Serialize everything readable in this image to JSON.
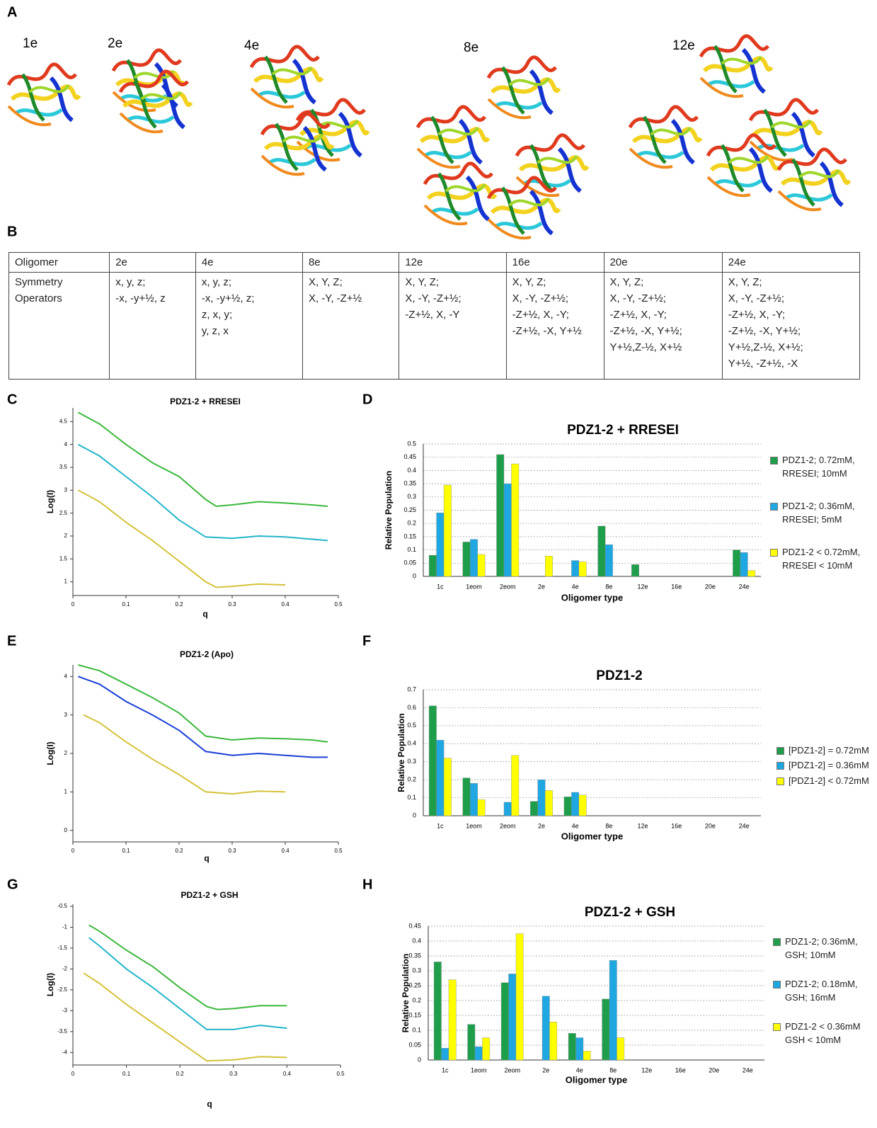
{
  "panel_labels": [
    "A",
    "B",
    "C",
    "D",
    "E",
    "F",
    "G",
    "H"
  ],
  "structures": [
    "1e",
    "2e",
    "4e",
    "8e",
    "12e"
  ],
  "table": {
    "header": [
      "Oligomer",
      "2e",
      "4e",
      "8e",
      "12e",
      "16e",
      "20e",
      "24e"
    ],
    "rows": [
      [
        [
          "Symmetry",
          "Operators"
        ],
        [
          "x, y, z;",
          "-x, -y+½, z"
        ],
        [
          "x, y, z;",
          "-x, -y+½, z;",
          "z, x, y;",
          "y, z, x"
        ],
        [
          "X, Y, Z;",
          "X, -Y, -Z+½"
        ],
        [
          "X, Y, Z;",
          "X, -Y, -Z+½;",
          "-Z+½, X, -Y"
        ],
        [
          "X, Y, Z;",
          "X, -Y, -Z+½;",
          "-Z+½, X, -Y;",
          "-Z+½, -X, Y+½"
        ],
        [
          "X, Y, Z;",
          "X, -Y, -Z+½;",
          "-Z+½, X, -Y;",
          "-Z+½, -X, Y+½;",
          "Y+½,Z-½, X+½"
        ],
        [
          "X, Y, Z;",
          "X, -Y, -Z+½;",
          "-Z+½, X, -Y;",
          "-Z+½, -X, Y+½;",
          "Y+½,Z-½, X+½;",
          "Y+½, -Z+½, -X"
        ]
      ]
    ]
  },
  "chart_data": [
    {
      "type": "line",
      "title": "PDZ1-2 + RRESEI",
      "x_label": "q",
      "y_label": "Log(I)",
      "xlim": [
        0,
        0.5
      ],
      "ylim": [
        0.7,
        4.8
      ],
      "xticks": [
        0,
        0.1,
        0.2,
        0.3,
        0.4,
        0.5
      ],
      "yticks": [
        1,
        1.5,
        2,
        2.5,
        3,
        3.5,
        4,
        4.5
      ],
      "series": [
        {
          "color": "#3cb83c",
          "x": [
            0.01,
            0.05,
            0.1,
            0.15,
            0.2,
            0.25,
            0.27,
            0.3,
            0.35,
            0.4,
            0.45,
            0.48
          ],
          "values": [
            4.7,
            4.45,
            4.0,
            3.6,
            3.3,
            2.8,
            2.65,
            2.68,
            2.75,
            2.72,
            2.68,
            2.65
          ]
        },
        {
          "color": "#22b5c8",
          "x": [
            0.01,
            0.05,
            0.1,
            0.15,
            0.2,
            0.25,
            0.3,
            0.35,
            0.4,
            0.45,
            0.48
          ],
          "values": [
            4.0,
            3.75,
            3.3,
            2.85,
            2.35,
            1.98,
            1.95,
            2.0,
            1.98,
            1.93,
            1.9
          ]
        },
        {
          "color": "#d4c23a",
          "x": [
            0.01,
            0.05,
            0.1,
            0.15,
            0.2,
            0.25,
            0.27,
            0.3,
            0.35,
            0.4
          ],
          "values": [
            3.0,
            2.75,
            2.3,
            1.9,
            1.45,
            1.0,
            0.88,
            0.9,
            0.95,
            0.93
          ]
        }
      ]
    },
    {
      "type": "bar",
      "title": "PDZ1-2 + RRESEI",
      "x_label": "Oligomer type",
      "y_label": "Relative Population",
      "grid": true,
      "ylim": [
        0,
        0.5
      ],
      "yticks": [
        0,
        0.05,
        0.1,
        0.15,
        0.2,
        0.25,
        0.3,
        0.35,
        0.4,
        0.45,
        0.5
      ],
      "categories": [
        "1c",
        "1eom",
        "2eom",
        "2e",
        "4e",
        "8e",
        "12e",
        "16e",
        "20e",
        "24e"
      ],
      "series": [
        {
          "name": "PDZ1-2; 0.72mM, RRESEI; 10mM",
          "color": "#1e9e4a",
          "values": [
            0.08,
            0.13,
            0.46,
            0,
            0,
            0.19,
            0.045,
            0,
            0,
            0.1
          ]
        },
        {
          "name": "PDZ1-2; 0.36mM, RRESEI; 5mM",
          "color": "#1ea7e1",
          "values": [
            0.24,
            0.14,
            0.35,
            0,
            0.06,
            0.12,
            0,
            0,
            0,
            0.09
          ]
        },
        {
          "name": "PDZ1-2 < 0.72mM, RRESEI < 10mM",
          "color": "#ffff00",
          "values": [
            0.345,
            0.083,
            0.425,
            0.077,
            0.055,
            0,
            0,
            0,
            0,
            0.022
          ]
        }
      ]
    },
    {
      "type": "line",
      "title": "PDZ1-2 (Apo)",
      "x_label": "q",
      "y_label": "Log(I)",
      "xlim": [
        0,
        0.5
      ],
      "ylim": [
        -0.3,
        4.3
      ],
      "xticks": [
        0,
        0.1,
        0.2,
        0.3,
        0.4,
        0.5
      ],
      "yticks": [
        0,
        1,
        2,
        3,
        4
      ],
      "series": [
        {
          "color": "#3cb83c",
          "x": [
            0.01,
            0.05,
            0.1,
            0.15,
            0.2,
            0.25,
            0.3,
            0.35,
            0.4,
            0.45,
            0.48
          ],
          "values": [
            4.3,
            4.15,
            3.8,
            3.45,
            3.05,
            2.45,
            2.35,
            2.4,
            2.38,
            2.35,
            2.3
          ]
        },
        {
          "color": "#1a3fd6",
          "x": [
            0.01,
            0.05,
            0.1,
            0.15,
            0.2,
            0.25,
            0.3,
            0.35,
            0.4,
            0.45,
            0.48
          ],
          "values": [
            4.0,
            3.8,
            3.35,
            3.0,
            2.6,
            2.05,
            1.95,
            2.0,
            1.95,
            1.9,
            1.9
          ]
        },
        {
          "color": "#d4c23a",
          "x": [
            0.02,
            0.05,
            0.1,
            0.15,
            0.2,
            0.25,
            0.3,
            0.35,
            0.4
          ],
          "values": [
            3.0,
            2.8,
            2.3,
            1.85,
            1.45,
            1.0,
            0.95,
            1.02,
            1.0
          ]
        }
      ]
    },
    {
      "type": "bar",
      "title": "PDZ1-2",
      "x_label": "Oligomer type",
      "y_label": "Relative Population",
      "grid": true,
      "ylim": [
        0,
        0.7
      ],
      "yticks": [
        0,
        0.1,
        0.2,
        0.3,
        0.4,
        0.5,
        0.6,
        0.7
      ],
      "categories": [
        "1c",
        "1eom",
        "2eom",
        "2e",
        "4e",
        "8e",
        "12e",
        "16e",
        "20e",
        "24e"
      ],
      "series": [
        {
          "name": "[PDZ1-2] = 0.72mM",
          "color": "#1e9e4a",
          "values": [
            0.61,
            0.21,
            0,
            0.08,
            0.105,
            0,
            0,
            0,
            0,
            0
          ]
        },
        {
          "name": "[PDZ1-2] = 0.36mM",
          "color": "#1ea7e1",
          "values": [
            0.42,
            0.18,
            0.075,
            0.2,
            0.13,
            0,
            0,
            0,
            0,
            0
          ]
        },
        {
          "name": "[PDZ1-2] < 0.72mM",
          "color": "#ffff00",
          "values": [
            0.32,
            0.09,
            0.335,
            0.14,
            0.115,
            0,
            0,
            0,
            0,
            0
          ]
        }
      ]
    },
    {
      "type": "line",
      "title": "PDZ1-2 + GSH",
      "x_label": "q",
      "y_label": "Log(I)",
      "xlim": [
        0,
        0.5
      ],
      "ylim": [
        -4.3,
        -0.45
      ],
      "xticks": [
        0,
        0.1,
        0.2,
        0.3,
        0.4,
        0.5
      ],
      "yticks": [
        -4,
        -3.5,
        -3,
        -2.5,
        -2,
        -1.5,
        -1,
        -0.5
      ],
      "series": [
        {
          "color": "#3cb83c",
          "x": [
            0.03,
            0.05,
            0.1,
            0.15,
            0.2,
            0.25,
            0.27,
            0.3,
            0.35,
            0.4
          ],
          "values": [
            -0.95,
            -1.1,
            -1.55,
            -1.95,
            -2.45,
            -2.9,
            -2.97,
            -2.95,
            -2.88,
            -2.88
          ]
        },
        {
          "color": "#22b5c8",
          "x": [
            0.03,
            0.05,
            0.1,
            0.15,
            0.2,
            0.25,
            0.3,
            0.35,
            0.4
          ],
          "values": [
            -1.25,
            -1.45,
            -2.0,
            -2.45,
            -2.95,
            -3.45,
            -3.45,
            -3.35,
            -3.42
          ]
        },
        {
          "color": "#d4c23a",
          "x": [
            0.02,
            0.05,
            0.1,
            0.15,
            0.2,
            0.25,
            0.3,
            0.35,
            0.4
          ],
          "values": [
            -2.1,
            -2.35,
            -2.85,
            -3.3,
            -3.75,
            -4.2,
            -4.18,
            -4.1,
            -4.12
          ]
        }
      ]
    },
    {
      "type": "bar",
      "title": "PDZ1-2 + GSH",
      "x_label": "Oligomer type",
      "y_label": "Relative Population",
      "grid": true,
      "ylim": [
        0,
        0.45
      ],
      "yticks": [
        0,
        0.05,
        0.1,
        0.15,
        0.2,
        0.25,
        0.3,
        0.35,
        0.4,
        0.45
      ],
      "categories": [
        "1c",
        "1eom",
        "2eom",
        "2e",
        "4e",
        "8e",
        "12e",
        "16e",
        "20e",
        "24e"
      ],
      "series": [
        {
          "name": "PDZ1-2; 0.36mM, GSH; 10mM",
          "color": "#1e9e4a",
          "values": [
            0.33,
            0.12,
            0.26,
            0,
            0.09,
            0.205,
            0,
            0,
            0,
            0
          ]
        },
        {
          "name": "PDZ1-2; 0.18mM, GSH; 16mM",
          "color": "#1ea7e1",
          "values": [
            0.04,
            0.045,
            0.29,
            0.215,
            0.075,
            0.335,
            0,
            0,
            0,
            0
          ]
        },
        {
          "name": "PDZ1-2 < 0.36mM GSH < 10mM",
          "color": "#ffff00",
          "values": [
            0.27,
            0.075,
            0.425,
            0.128,
            0.03,
            0.075,
            0,
            0,
            0,
            0
          ]
        }
      ]
    }
  ]
}
